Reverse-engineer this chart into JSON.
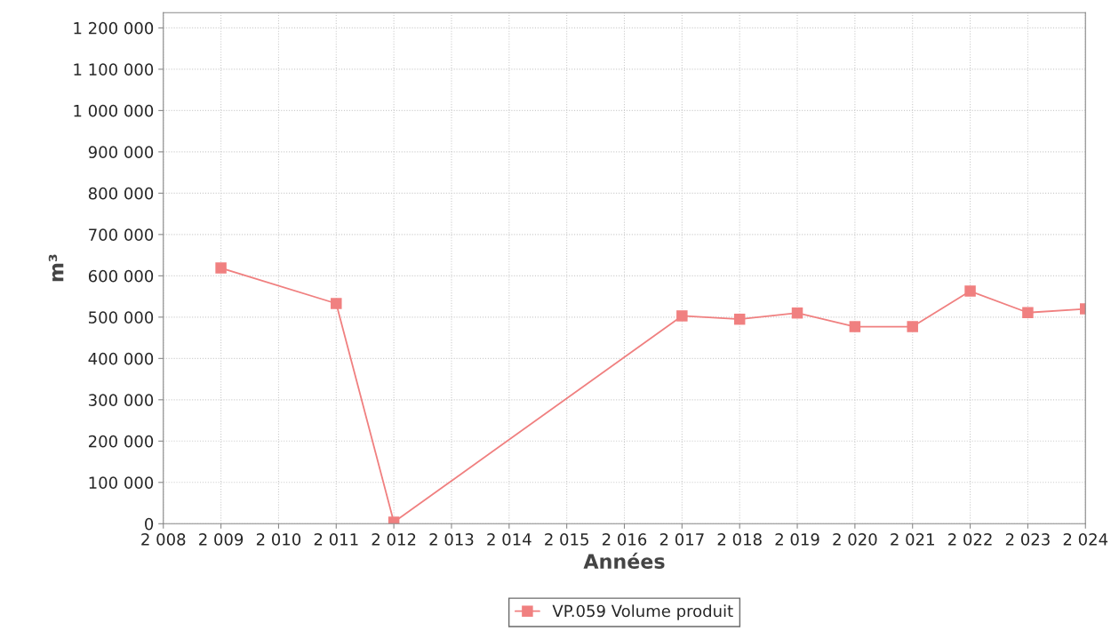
{
  "chart_data": {
    "type": "line",
    "xlabel": "Années",
    "ylabel": "m³",
    "x": [
      2009,
      2011,
      2012,
      2017,
      2018,
      2019,
      2020,
      2021,
      2022,
      2023,
      2024
    ],
    "series": [
      {
        "name": "VP.059 Volume produit",
        "color": "#f08080",
        "values": [
          619000,
          533000,
          4000,
          503000,
          495000,
          510000,
          477000,
          477000,
          563000,
          511000,
          520000
        ]
      }
    ],
    "xlim": [
      2008,
      2024
    ],
    "xticks": [
      {
        "value": 2008,
        "label": "2 008"
      },
      {
        "value": 2009,
        "label": "2 009"
      },
      {
        "value": 2010,
        "label": "2 010"
      },
      {
        "value": 2011,
        "label": "2 011"
      },
      {
        "value": 2012,
        "label": "2 012"
      },
      {
        "value": 2013,
        "label": "2 013"
      },
      {
        "value": 2014,
        "label": "2 014"
      },
      {
        "value": 2015,
        "label": "2 015"
      },
      {
        "value": 2016,
        "label": "2 016"
      },
      {
        "value": 2017,
        "label": "2 017"
      },
      {
        "value": 2018,
        "label": "2 018"
      },
      {
        "value": 2019,
        "label": "2 019"
      },
      {
        "value": 2020,
        "label": "2 020"
      },
      {
        "value": 2021,
        "label": "2 021"
      },
      {
        "value": 2022,
        "label": "2 022"
      },
      {
        "value": 2023,
        "label": "2 023"
      },
      {
        "value": 2024,
        "label": "2 024"
      }
    ],
    "ylim": [
      0,
      1237000
    ],
    "yticks": [
      0,
      {
        "value": 100000,
        "label": "100 000"
      },
      {
        "value": 200000,
        "label": "200 000"
      },
      {
        "value": 300000,
        "label": "300 000"
      },
      {
        "value": 400000,
        "label": "400 000"
      },
      {
        "value": 500000,
        "label": "500 000"
      },
      {
        "value": 600000,
        "label": "600 000"
      },
      {
        "value": 700000,
        "label": "700 000"
      },
      {
        "value": 800000,
        "label": "800 000"
      },
      {
        "value": 900000,
        "label": "900 000"
      },
      {
        "value": 1000000,
        "label": "1 000 000"
      },
      {
        "value": 1100000,
        "label": "1 100 000"
      },
      {
        "value": 1200000,
        "label": "1 200 000"
      }
    ],
    "grid": true,
    "legend": "bottom",
    "marker": "square",
    "line_style": "solid"
  }
}
